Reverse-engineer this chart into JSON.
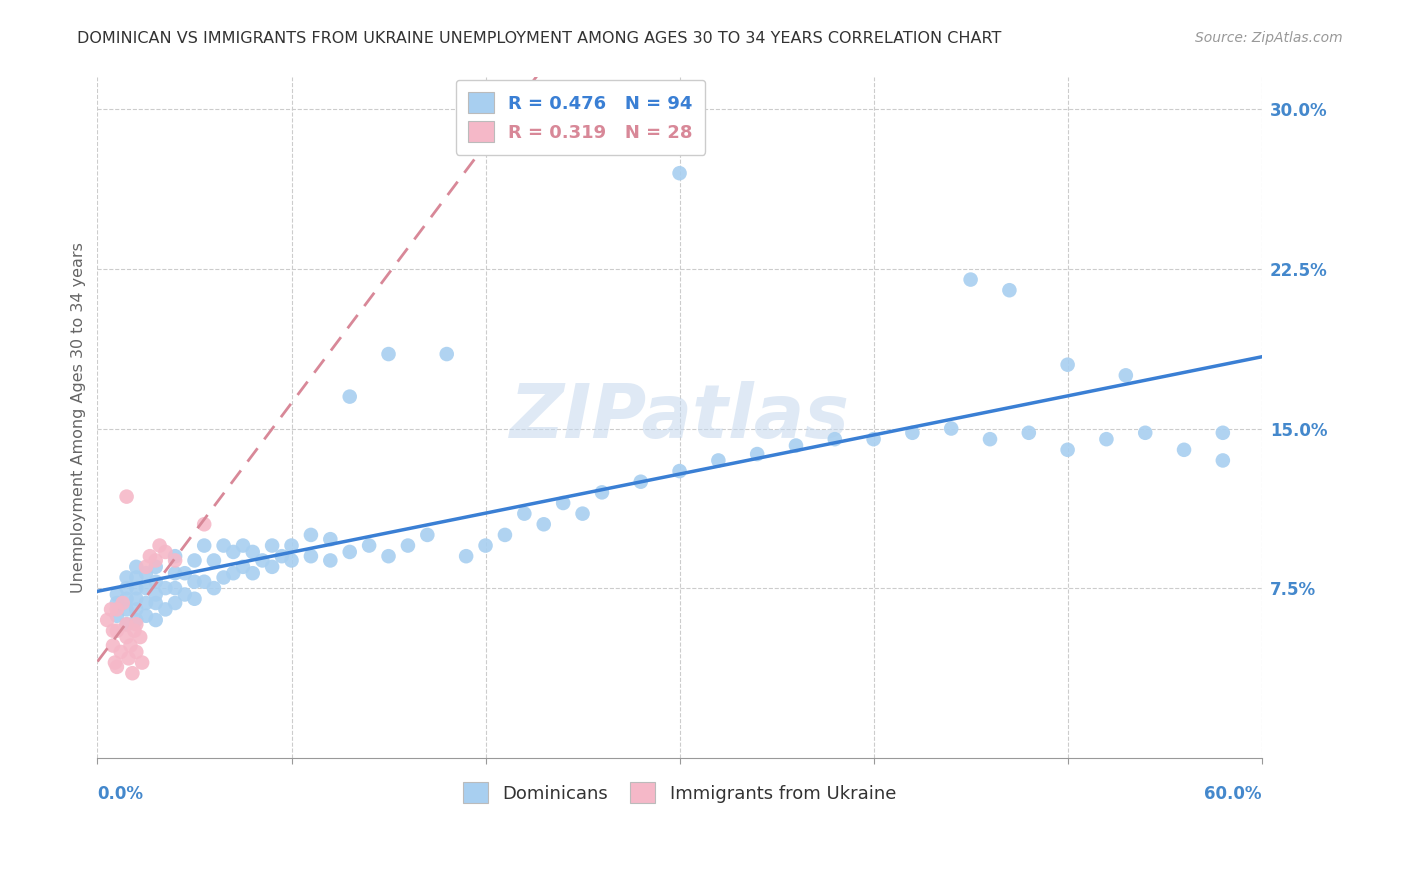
{
  "title": "DOMINICAN VS IMMIGRANTS FROM UKRAINE UNEMPLOYMENT AMONG AGES 30 TO 34 YEARS CORRELATION CHART",
  "source": "Source: ZipAtlas.com",
  "ylabel": "Unemployment Among Ages 30 to 34 years",
  "xlim": [
    0.0,
    0.6
  ],
  "ylim": [
    -0.005,
    0.315
  ],
  "ytick_vals": [
    0.075,
    0.15,
    0.225,
    0.3
  ],
  "ytick_labels": [
    "7.5%",
    "15.0%",
    "22.5%",
    "30.0%"
  ],
  "xtick_vals": [
    0.0,
    0.1,
    0.2,
    0.3,
    0.4,
    0.5,
    0.6
  ],
  "legend_labels": [
    "Dominicans",
    "Immigrants from Ukraine"
  ],
  "r_dominican": 0.476,
  "n_dominican": 94,
  "r_ukraine": 0.319,
  "n_ukraine": 28,
  "blue_scatter_color": "#a8cff0",
  "pink_scatter_color": "#f5b8c8",
  "blue_line_color": "#3a7fd4",
  "pink_line_color": "#d88898",
  "watermark": "ZIPatlas",
  "title_color": "#333333",
  "axis_label_color": "#4488cc",
  "dominican_x": [
    0.01,
    0.01,
    0.01,
    0.015,
    0.015,
    0.015,
    0.015,
    0.015,
    0.02,
    0.02,
    0.02,
    0.02,
    0.02,
    0.02,
    0.025,
    0.025,
    0.025,
    0.025,
    0.03,
    0.03,
    0.03,
    0.03,
    0.03,
    0.035,
    0.035,
    0.04,
    0.04,
    0.04,
    0.04,
    0.045,
    0.045,
    0.05,
    0.05,
    0.05,
    0.055,
    0.055,
    0.06,
    0.06,
    0.065,
    0.065,
    0.07,
    0.07,
    0.075,
    0.075,
    0.08,
    0.08,
    0.085,
    0.09,
    0.09,
    0.095,
    0.1,
    0.1,
    0.11,
    0.11,
    0.12,
    0.12,
    0.13,
    0.13,
    0.14,
    0.15,
    0.15,
    0.16,
    0.17,
    0.18,
    0.19,
    0.2,
    0.21,
    0.22,
    0.23,
    0.24,
    0.25,
    0.26,
    0.28,
    0.3,
    0.3,
    0.32,
    0.34,
    0.36,
    0.38,
    0.4,
    0.42,
    0.44,
    0.46,
    0.48,
    0.5,
    0.52,
    0.54,
    0.56,
    0.58,
    0.58,
    0.45,
    0.47,
    0.5,
    0.53
  ],
  "dominican_y": [
    0.062,
    0.068,
    0.072,
    0.058,
    0.065,
    0.07,
    0.075,
    0.08,
    0.06,
    0.065,
    0.07,
    0.075,
    0.08,
    0.085,
    0.062,
    0.068,
    0.075,
    0.082,
    0.06,
    0.068,
    0.072,
    0.078,
    0.085,
    0.065,
    0.075,
    0.068,
    0.075,
    0.082,
    0.09,
    0.072,
    0.082,
    0.07,
    0.078,
    0.088,
    0.078,
    0.095,
    0.075,
    0.088,
    0.08,
    0.095,
    0.082,
    0.092,
    0.085,
    0.095,
    0.082,
    0.092,
    0.088,
    0.085,
    0.095,
    0.09,
    0.088,
    0.095,
    0.09,
    0.1,
    0.088,
    0.098,
    0.092,
    0.165,
    0.095,
    0.09,
    0.185,
    0.095,
    0.1,
    0.185,
    0.09,
    0.095,
    0.1,
    0.11,
    0.105,
    0.115,
    0.11,
    0.12,
    0.125,
    0.13,
    0.27,
    0.135,
    0.138,
    0.142,
    0.145,
    0.145,
    0.148,
    0.15,
    0.145,
    0.148,
    0.14,
    0.145,
    0.148,
    0.14,
    0.148,
    0.135,
    0.22,
    0.215,
    0.18,
    0.175
  ],
  "ukraine_x": [
    0.005,
    0.007,
    0.008,
    0.008,
    0.009,
    0.01,
    0.01,
    0.01,
    0.012,
    0.013,
    0.015,
    0.015,
    0.015,
    0.016,
    0.017,
    0.018,
    0.019,
    0.02,
    0.02,
    0.022,
    0.023,
    0.025,
    0.027,
    0.03,
    0.032,
    0.035,
    0.04,
    0.055
  ],
  "ukraine_y": [
    0.06,
    0.065,
    0.048,
    0.055,
    0.04,
    0.038,
    0.055,
    0.065,
    0.045,
    0.068,
    0.052,
    0.058,
    0.118,
    0.042,
    0.048,
    0.035,
    0.055,
    0.058,
    0.045,
    0.052,
    0.04,
    0.085,
    0.09,
    0.088,
    0.095,
    0.092,
    0.088,
    0.105
  ]
}
